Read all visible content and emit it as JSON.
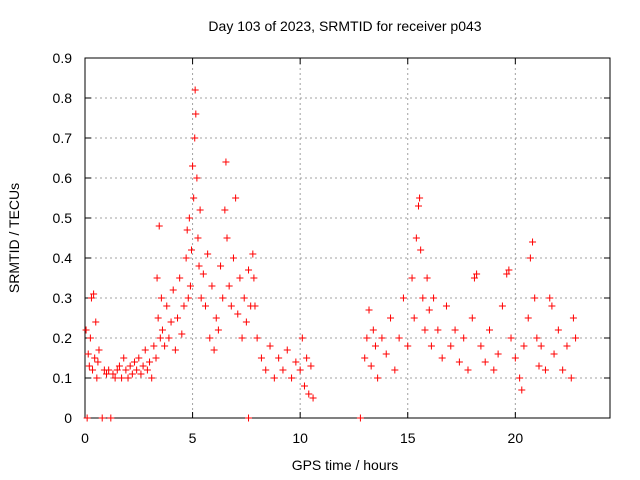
{
  "chart_data": {
    "type": "scatter",
    "title": "Day 103 of 2023, SRMTID for receiver p043",
    "xlabel": "GPS time / hours",
    "ylabel": "SRMTID / TECUs",
    "xlim": [
      0,
      24.4
    ],
    "ylim": [
      0,
      0.9
    ],
    "x_ticks": [
      0,
      5,
      10,
      15,
      20
    ],
    "x_tick_labels": [
      "0",
      "5",
      "10",
      "15",
      "20"
    ],
    "y_ticks": [
      0,
      0.1,
      0.2,
      0.3,
      0.4,
      0.5,
      0.6,
      0.7,
      0.8,
      0.9
    ],
    "y_tick_labels": [
      "0",
      "0.1",
      "0.2",
      "0.3",
      "0.4",
      "0.5",
      "0.6",
      "0.7",
      "0.8",
      "0.9"
    ],
    "grid": true,
    "marker": "+",
    "color": "#ff0000",
    "series": [
      {
        "name": "SRMTID",
        "points": [
          [
            0.05,
            0.22
          ],
          [
            0.1,
            0.0
          ],
          [
            0.15,
            0.16
          ],
          [
            0.2,
            0.13
          ],
          [
            0.25,
            0.2
          ],
          [
            0.3,
            0.3
          ],
          [
            0.35,
            0.12
          ],
          [
            0.4,
            0.31
          ],
          [
            0.45,
            0.15
          ],
          [
            0.5,
            0.24
          ],
          [
            0.55,
            0.1
          ],
          [
            0.6,
            0.14
          ],
          [
            0.65,
            0.17
          ],
          [
            0.8,
            0.0
          ],
          [
            0.9,
            0.12
          ],
          [
            1.0,
            0.11
          ],
          [
            1.1,
            0.12
          ],
          [
            1.2,
            0.0
          ],
          [
            1.3,
            0.11
          ],
          [
            1.4,
            0.1
          ],
          [
            1.5,
            0.12
          ],
          [
            1.6,
            0.13
          ],
          [
            1.7,
            0.1
          ],
          [
            1.8,
            0.15
          ],
          [
            1.9,
            0.12
          ],
          [
            2.0,
            0.1
          ],
          [
            2.1,
            0.13
          ],
          [
            2.2,
            0.11
          ],
          [
            2.3,
            0.14
          ],
          [
            2.4,
            0.12
          ],
          [
            2.5,
            0.15
          ],
          [
            2.6,
            0.11
          ],
          [
            2.7,
            0.13
          ],
          [
            2.8,
            0.17
          ],
          [
            2.9,
            0.12
          ],
          [
            3.0,
            0.14
          ],
          [
            3.1,
            0.1
          ],
          [
            3.2,
            0.18
          ],
          [
            3.3,
            0.15
          ],
          [
            3.35,
            0.35
          ],
          [
            3.4,
            0.25
          ],
          [
            3.45,
            0.48
          ],
          [
            3.5,
            0.2
          ],
          [
            3.55,
            0.3
          ],
          [
            3.6,
            0.22
          ],
          [
            3.7,
            0.18
          ],
          [
            3.8,
            0.28
          ],
          [
            3.9,
            0.2
          ],
          [
            4.0,
            0.24
          ],
          [
            4.1,
            0.32
          ],
          [
            4.2,
            0.17
          ],
          [
            4.3,
            0.25
          ],
          [
            4.4,
            0.35
          ],
          [
            4.5,
            0.21
          ],
          [
            4.6,
            0.28
          ],
          [
            4.7,
            0.4
          ],
          [
            4.75,
            0.47
          ],
          [
            4.8,
            0.3
          ],
          [
            4.85,
            0.5
          ],
          [
            4.9,
            0.33
          ],
          [
            4.95,
            0.42
          ],
          [
            5.0,
            0.63
          ],
          [
            5.05,
            0.55
          ],
          [
            5.1,
            0.7
          ],
          [
            5.12,
            0.82
          ],
          [
            5.15,
            0.76
          ],
          [
            5.2,
            0.6
          ],
          [
            5.25,
            0.45
          ],
          [
            5.3,
            0.38
          ],
          [
            5.35,
            0.52
          ],
          [
            5.4,
            0.3
          ],
          [
            5.5,
            0.36
          ],
          [
            5.6,
            0.28
          ],
          [
            5.7,
            0.41
          ],
          [
            5.8,
            0.2
          ],
          [
            5.9,
            0.33
          ],
          [
            6.0,
            0.17
          ],
          [
            6.1,
            0.25
          ],
          [
            6.2,
            0.22
          ],
          [
            6.3,
            0.38
          ],
          [
            6.4,
            0.3
          ],
          [
            6.5,
            0.52
          ],
          [
            6.55,
            0.64
          ],
          [
            6.6,
            0.45
          ],
          [
            6.7,
            0.33
          ],
          [
            6.8,
            0.28
          ],
          [
            6.9,
            0.4
          ],
          [
            7.0,
            0.55
          ],
          [
            7.1,
            0.26
          ],
          [
            7.2,
            0.35
          ],
          [
            7.3,
            0.2
          ],
          [
            7.4,
            0.3
          ],
          [
            7.5,
            0.24
          ],
          [
            7.6,
            0.37
          ],
          [
            7.7,
            0.28
          ],
          [
            7.8,
            0.41
          ],
          [
            7.85,
            0.35
          ],
          [
            7.9,
            0.28
          ],
          [
            8.0,
            0.2
          ],
          [
            8.2,
            0.15
          ],
          [
            8.4,
            0.12
          ],
          [
            8.6,
            0.18
          ],
          [
            8.8,
            0.1
          ],
          [
            9.0,
            0.15
          ],
          [
            9.2,
            0.12
          ],
          [
            9.4,
            0.17
          ],
          [
            9.6,
            0.1
          ],
          [
            9.8,
            0.14
          ],
          [
            10.0,
            0.12
          ],
          [
            10.1,
            0.2
          ],
          [
            10.2,
            0.08
          ],
          [
            10.3,
            0.15
          ],
          [
            10.4,
            0.06
          ],
          [
            10.5,
            0.13
          ],
          [
            10.6,
            0.05
          ],
          [
            7.6,
            0.0
          ],
          [
            12.8,
            0.0
          ],
          [
            13.0,
            0.15
          ],
          [
            13.1,
            0.2
          ],
          [
            13.2,
            0.27
          ],
          [
            13.3,
            0.13
          ],
          [
            13.4,
            0.22
          ],
          [
            13.5,
            0.18
          ],
          [
            13.6,
            0.1
          ],
          [
            13.8,
            0.2
          ],
          [
            14.0,
            0.16
          ],
          [
            14.2,
            0.25
          ],
          [
            14.4,
            0.12
          ],
          [
            14.6,
            0.2
          ],
          [
            14.8,
            0.3
          ],
          [
            15.0,
            0.18
          ],
          [
            15.2,
            0.35
          ],
          [
            15.3,
            0.25
          ],
          [
            15.4,
            0.45
          ],
          [
            15.5,
            0.53
          ],
          [
            15.55,
            0.55
          ],
          [
            15.6,
            0.42
          ],
          [
            15.7,
            0.3
          ],
          [
            15.8,
            0.22
          ],
          [
            15.9,
            0.35
          ],
          [
            16.0,
            0.27
          ],
          [
            16.1,
            0.18
          ],
          [
            16.2,
            0.3
          ],
          [
            16.4,
            0.22
          ],
          [
            16.6,
            0.15
          ],
          [
            16.8,
            0.28
          ],
          [
            17.0,
            0.18
          ],
          [
            17.2,
            0.22
          ],
          [
            17.4,
            0.14
          ],
          [
            17.6,
            0.2
          ],
          [
            17.8,
            0.12
          ],
          [
            18.0,
            0.25
          ],
          [
            18.1,
            0.35
          ],
          [
            18.2,
            0.36
          ],
          [
            18.4,
            0.18
          ],
          [
            18.6,
            0.14
          ],
          [
            18.8,
            0.22
          ],
          [
            19.0,
            0.12
          ],
          [
            19.2,
            0.16
          ],
          [
            19.4,
            0.28
          ],
          [
            19.6,
            0.36
          ],
          [
            19.7,
            0.37
          ],
          [
            19.8,
            0.2
          ],
          [
            20.0,
            0.15
          ],
          [
            20.2,
            0.1
          ],
          [
            20.3,
            0.07
          ],
          [
            20.4,
            0.18
          ],
          [
            20.6,
            0.25
          ],
          [
            20.7,
            0.4
          ],
          [
            20.8,
            0.44
          ],
          [
            20.9,
            0.3
          ],
          [
            21.0,
            0.2
          ],
          [
            21.1,
            0.13
          ],
          [
            21.2,
            0.18
          ],
          [
            21.4,
            0.12
          ],
          [
            21.6,
            0.3
          ],
          [
            21.7,
            0.28
          ],
          [
            21.8,
            0.16
          ],
          [
            22.0,
            0.22
          ],
          [
            22.2,
            0.12
          ],
          [
            22.4,
            0.18
          ],
          [
            22.6,
            0.1
          ],
          [
            22.7,
            0.25
          ],
          [
            22.8,
            0.2
          ]
        ]
      }
    ]
  }
}
